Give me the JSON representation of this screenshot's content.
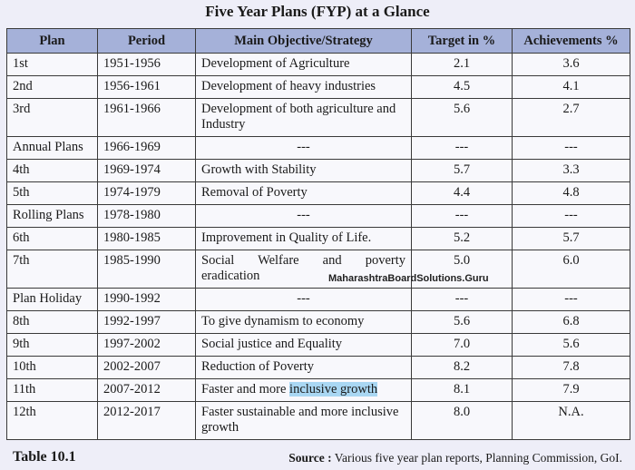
{
  "title": "Five Year Plans (FYP) at a Glance",
  "headers": {
    "plan": "Plan",
    "period": "Period",
    "objective": "Main Objective/Strategy",
    "target": "Target in %",
    "achievements": "Achievements %"
  },
  "rows": [
    {
      "plan": "1st",
      "period": "1951-1956",
      "objective": "Development of Agriculture",
      "target": "2.1",
      "achievement": "3.6"
    },
    {
      "plan": "2nd",
      "period": "1956-1961",
      "objective": "Development of heavy industries",
      "target": "4.5",
      "achievement": "4.1"
    },
    {
      "plan": "3rd",
      "period": "1961-1966",
      "objective": "Development of both agriculture and Industry",
      "target": "5.6",
      "achievement": "2.7"
    },
    {
      "plan": "Annual Plans",
      "period": "1966-1969",
      "objective": "---",
      "target": "---",
      "achievement": "---"
    },
    {
      "plan": "4th",
      "period": "1969-1974",
      "objective": "Growth with Stability",
      "target": "5.7",
      "achievement": "3.3"
    },
    {
      "plan": "5th",
      "period": "1974-1979",
      "objective": "Removal of Poverty",
      "target": "4.4",
      "achievement": "4.8"
    },
    {
      "plan": "Rolling Plans",
      "period": "1978-1980",
      "objective": "---",
      "target": "---",
      "achievement": "---"
    },
    {
      "plan": "6th",
      "period": "1980-1985",
      "objective": "Improvement in Quality of Life.",
      "target": "5.2",
      "achievement": "5.7"
    },
    {
      "plan": "7th",
      "period": "1985-1990",
      "objective": "Social Welfare and poverty eradication",
      "target": "5.0",
      "achievement": "6.0"
    },
    {
      "plan": "Plan Holiday",
      "period": "1990-1992",
      "objective": "---",
      "target": "---",
      "achievement": "---"
    },
    {
      "plan": "8th",
      "period": "1992-1997",
      "objective": "To give dynamism to economy",
      "target": "5.6",
      "achievement": "6.8"
    },
    {
      "plan": "9th",
      "period": "1997-2002",
      "objective": "Social justice and Equality",
      "target": "7.0",
      "achievement": "5.6"
    },
    {
      "plan": "10th",
      "period": "2002-2007",
      "objective": "Reduction of Poverty",
      "target": "8.2",
      "achievement": "7.8"
    },
    {
      "plan": "11th",
      "period": "2007-2012",
      "objective_pre": "Faster and more ",
      "objective_hl": "inclusive growth",
      "target": "8.1",
      "achievement": "7.9"
    },
    {
      "plan": "12th",
      "period": "2012-2017",
      "objective": "Faster sustainable and more inclusive growth",
      "target": "8.0",
      "achievement": "N.A."
    }
  ],
  "watermark": "MaharashtraBoardSolutions.Guru",
  "footer": {
    "table_label": "Table 10.1",
    "source_label": "Source :",
    "source_text": " Various five year plan reports, Planning Commission, GoI."
  },
  "colors": {
    "header_bg": "#a5b1d9",
    "page_bg": "#eeeef8",
    "highlight": "#a9d7f3"
  }
}
